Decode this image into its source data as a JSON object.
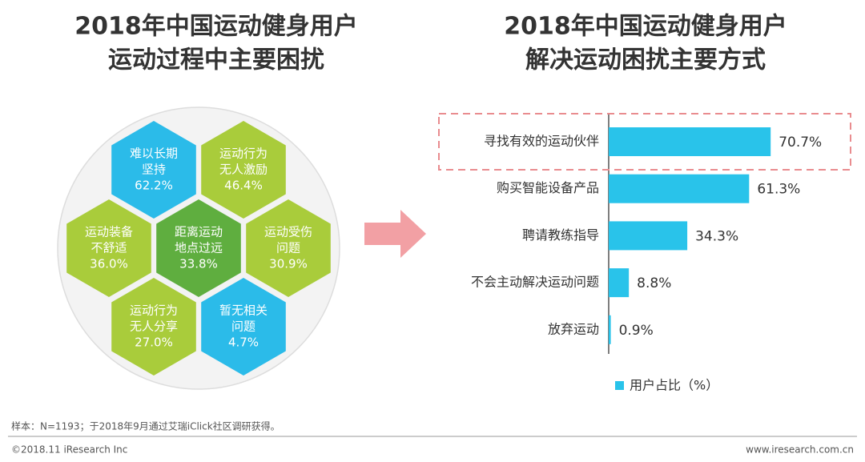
{
  "chart_data": [
    {
      "type": "hexagon",
      "title": [
        "2018年中国运动健身用户",
        "运动过程中主要困扰"
      ],
      "items": [
        {
          "label": [
            "难以长期",
            "坚持"
          ],
          "value": 62.2,
          "value_label": "62.2%",
          "color": "#2bbbe9"
        },
        {
          "label": [
            "运动行为",
            "无人激励"
          ],
          "value": 46.4,
          "value_label": "46.4%",
          "color": "#a9cc3b"
        },
        {
          "label": [
            "运动装备",
            "不舒适"
          ],
          "value": 36.0,
          "value_label": "36.0%",
          "color": "#a9cc3b"
        },
        {
          "label": [
            "距离运动",
            "地点过远"
          ],
          "value": 33.8,
          "value_label": "33.8%",
          "color": "#5fae3f"
        },
        {
          "label": [
            "运动受伤",
            "问题"
          ],
          "value": 30.9,
          "value_label": "30.9%",
          "color": "#a9cc3b"
        },
        {
          "label": [
            "运动行为",
            "无人分享"
          ],
          "value": 27.0,
          "value_label": "27.0%",
          "color": "#a9cc3b"
        },
        {
          "label": [
            "暂无相关",
            "问题"
          ],
          "value": 4.7,
          "value_label": "4.7%",
          "color": "#2bbbe9"
        }
      ]
    },
    {
      "type": "bar",
      "title": [
        "2018年中国运动健身用户",
        "解决运动困扰主要方式"
      ],
      "categories": [
        "寻找有效的运动伙伴",
        "购买智能设备产品",
        "聘请教练指导",
        "不会主动解决运动问题",
        "放弃运动"
      ],
      "series": [
        {
          "name": "用户占比（%）",
          "color": "#29c3ea",
          "values": [
            70.7,
            61.3,
            34.3,
            8.8,
            0.9
          ],
          "value_labels": [
            "70.7%",
            "61.3%",
            "34.3%",
            "8.8%",
            "0.9%"
          ]
        }
      ],
      "xlim": [
        0,
        100
      ],
      "highlight_index": 0
    }
  ],
  "footer": {
    "note": "样本：N=1193；于2018年9月通过艾瑞iClick社区调研获得。",
    "copyright": "©2018.11 iResearch Inc",
    "website": "www.iresearch.com.cn"
  }
}
